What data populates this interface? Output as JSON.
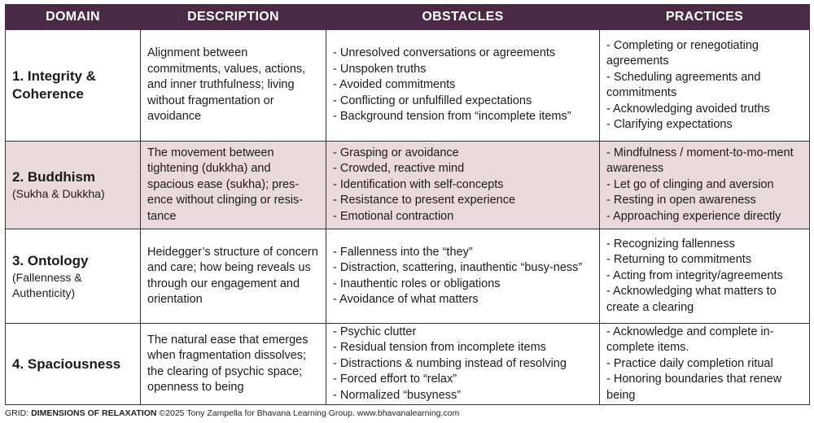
{
  "headers": [
    "DOMAIN",
    "DESCRIPTION",
    "OBSTACLES",
    "PRACTICES"
  ],
  "rows": [
    {
      "domain_title": "1. Integrity & Coherence",
      "domain_sub": "",
      "description": "Alignment between commitments, values, actions, and inner truthfulness; living without fragmentation or avoidance",
      "obstacles": [
        "- Unresolved conversations or agreements",
        "- Unspoken truths",
        "- Avoided commitments",
        "- Conflicting or unfulfilled expectations",
        "- Background tension from “incomplete items”"
      ],
      "practices": [
        "- Completing or renegotiating agreements",
        "- Scheduling agreements and commitments",
        "- Acknowledging avoided truths",
        "- Clarifying expectations"
      ]
    },
    {
      "domain_title": "2. Buddhism",
      "domain_sub": "(Sukha & Dukkha)",
      "description": "The movement between tightening (dukkha) and spacious ease (sukha); pres-ence without clinging or resis-tance",
      "obstacles": [
        "- Grasping or avoidance",
        "- Crowded, reactive mind",
        "- Identification with self-concepts",
        "- Resistance to present experience",
        "- Emotional contraction"
      ],
      "practices": [
        "- Mindfulness / moment-to-mo-ment awareness",
        "- Let go of clinging and aversion",
        "- Resting in open awareness",
        "- Approaching experience directly"
      ]
    },
    {
      "domain_title": "3. Ontology",
      "domain_sub": "(Fallenness & Authenticity)",
      "description": "Heidegger’s structure of concern and care; how being reveals us through our engagement and orientation",
      "obstacles": [
        "- Fallenness into the “they”",
        "- Distraction, scattering, inauthentic “busy-ness”",
        "- Inauthentic roles or obligations",
        "- Avoidance of what matters"
      ],
      "practices": [
        "- Recognizing fallenness",
        "- Returning to commitments",
        "- Acting from integrity/agreements",
        "- Acknowledging what matters to create a clearing"
      ]
    },
    {
      "domain_title": "4. Spaciousness",
      "domain_sub": "",
      "description": "The natural ease that emerges when fragmentation dissolves; the clearing of psychic space; openness to being",
      "obstacles": [
        "- Psychic clutter",
        "- Residual tension from incomplete items",
        "- Distractions & numbing instead of resolving",
        "- Forced effort to “relax”",
        "- Normalized “busyness”"
      ],
      "practices": [
        "- Acknowledge and complete in-complete items.",
        "- Practice daily completion ritual",
        "- Honoring boundaries that renew being"
      ]
    }
  ],
  "footer": {
    "prefix": "GRID: ",
    "title": "DIMENSIONS OF RELAXATION",
    "text": " ©2025 Tony Zampella for Bhavana Learning Group. www.bhavanalearning.com"
  },
  "colors": {
    "header_bg": "#4a2a45",
    "highlight_row": "#e9d9db",
    "border": "#333333"
  }
}
